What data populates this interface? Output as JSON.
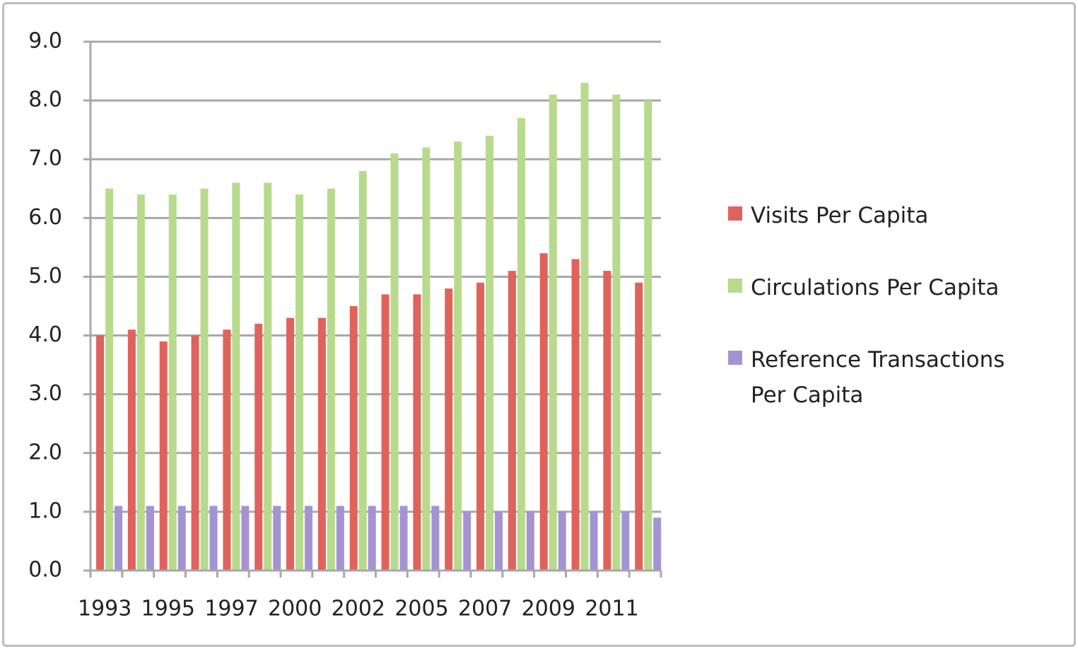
{
  "chart_data": {
    "type": "bar",
    "categories": [
      "1993",
      null,
      "1995",
      null,
      "1997",
      null,
      "2000",
      null,
      "2002",
      null,
      "2005",
      null,
      "2007",
      null,
      "2009",
      null,
      "2011",
      null
    ],
    "series": [
      {
        "name": "Visits Per Capita",
        "color": "#e0625c",
        "values": [
          4.0,
          4.1,
          3.9,
          4.0,
          4.1,
          4.2,
          4.3,
          4.3,
          4.5,
          4.7,
          4.7,
          4.8,
          4.9,
          5.1,
          5.4,
          5.3,
          5.1,
          4.9
        ]
      },
      {
        "name": "Circulations Per Capita",
        "color": "#b7da8c",
        "values": [
          6.5,
          6.4,
          6.4,
          6.5,
          6.6,
          6.6,
          6.4,
          6.5,
          6.8,
          7.1,
          7.2,
          7.3,
          7.4,
          7.7,
          8.1,
          8.3,
          8.1,
          8.0
        ]
      },
      {
        "name": "Reference Transactions Per Capita",
        "color": "#a493d3",
        "values": [
          1.1,
          1.1,
          1.1,
          1.1,
          1.1,
          1.1,
          1.1,
          1.1,
          1.1,
          1.1,
          1.1,
          1.0,
          1.0,
          1.0,
          1.0,
          1.0,
          1.0,
          0.9
        ]
      }
    ],
    "ylim": [
      0,
      9
    ],
    "yticks": [
      {
        "value": 0,
        "label": "0.0"
      },
      {
        "value": 1,
        "label": "1.0"
      },
      {
        "value": 2,
        "label": "2.0"
      },
      {
        "value": 3,
        "label": "3.0"
      },
      {
        "value": 4,
        "label": "4.0"
      },
      {
        "value": 5,
        "label": "5.0"
      },
      {
        "value": 6,
        "label": "6.0"
      },
      {
        "value": 7,
        "label": "7.0"
      },
      {
        "value": 8,
        "label": "8.0"
      },
      {
        "value": 9,
        "label": "9.0"
      }
    ],
    "grid": true,
    "legend": "right"
  }
}
